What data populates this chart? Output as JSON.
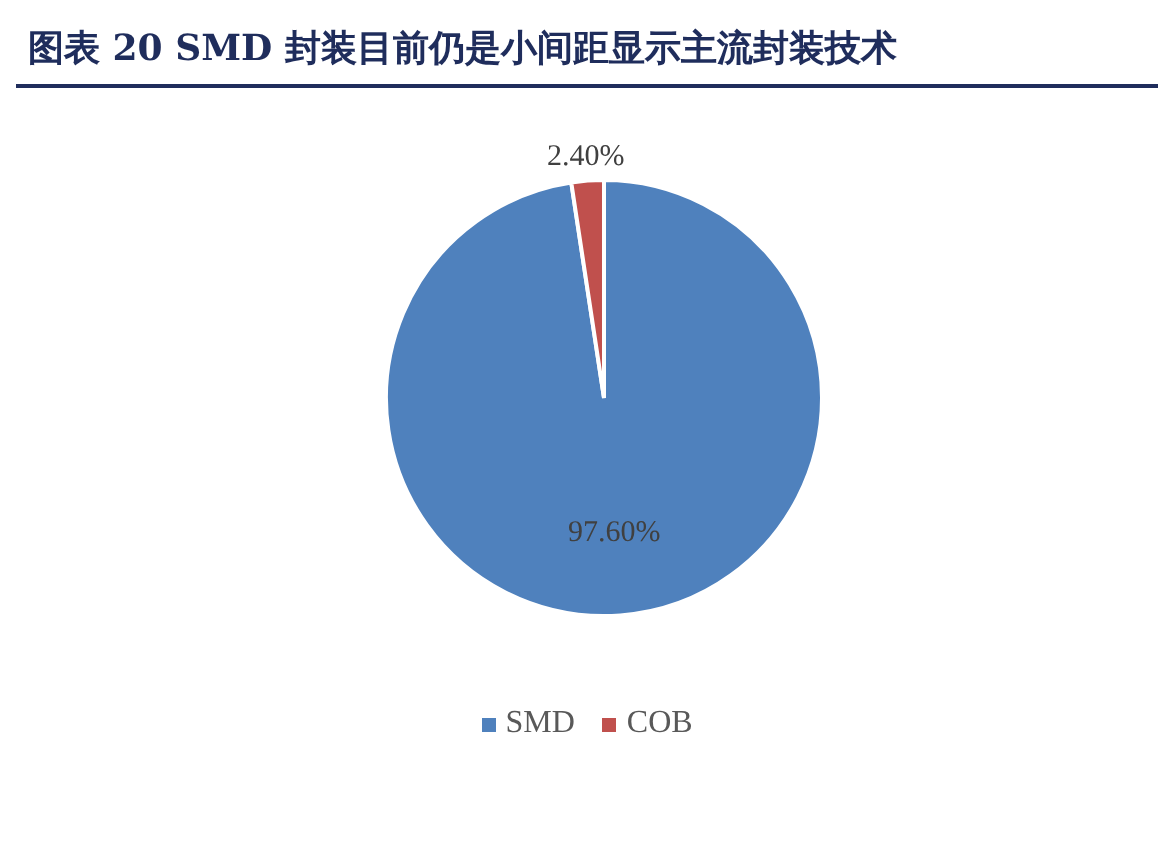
{
  "chart_data": {
    "type": "pie",
    "title": "图表 20 SMD 封装目前仍是小间距显示主流封装技术",
    "categories": [
      "SMD",
      "COB"
    ],
    "values": [
      97.6,
      2.4
    ],
    "colors": [
      "#4f81bd",
      "#c0504d"
    ],
    "value_labels": [
      "97.60%",
      "2.40%"
    ],
    "legend": "bottom"
  }
}
